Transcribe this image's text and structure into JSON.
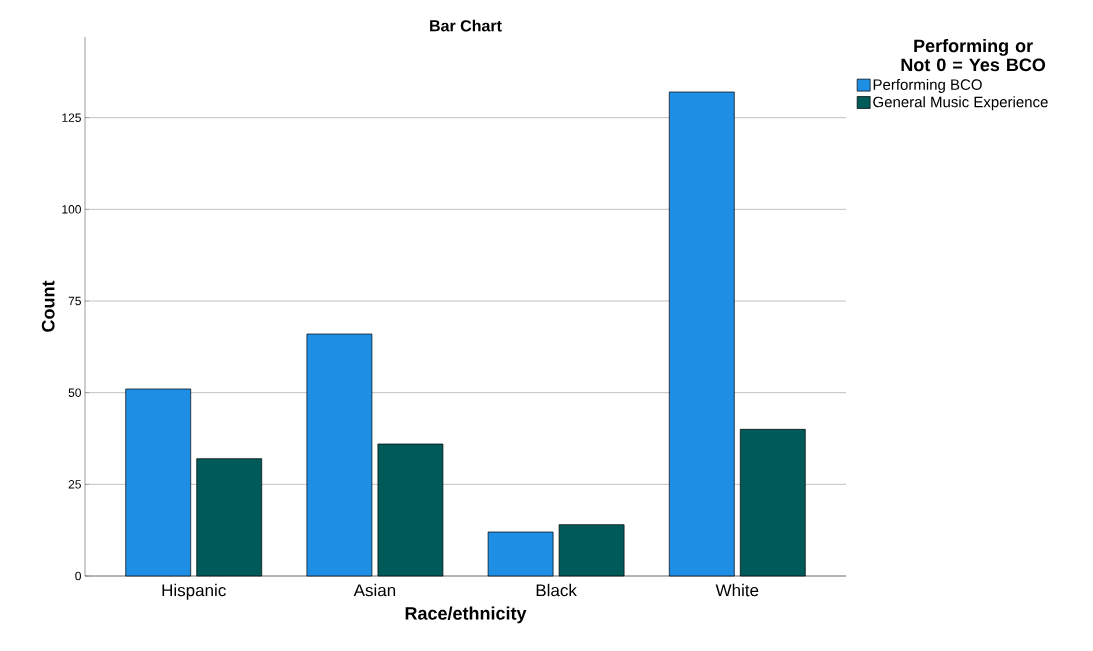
{
  "chart_data": {
    "type": "bar",
    "title": "Bar Chart",
    "xlabel": "Race/ethnicity",
    "ylabel": "Count",
    "legend_title": "Performing or Not 0 = Yes BCO",
    "categories": [
      "Hispanic",
      "Asian",
      "Black",
      "White"
    ],
    "series": [
      {
        "name": "Performing BCO",
        "color": "#1f8fe6",
        "values": [
          51,
          66,
          12,
          132
        ]
      },
      {
        "name": "General Music Experience",
        "color": "#005a5a",
        "values": [
          32,
          36,
          14,
          40
        ]
      }
    ],
    "ylim": [
      0,
      147
    ],
    "yticks": [
      0,
      25,
      50,
      75,
      100,
      125
    ],
    "grid": "y",
    "legend": "top right"
  }
}
